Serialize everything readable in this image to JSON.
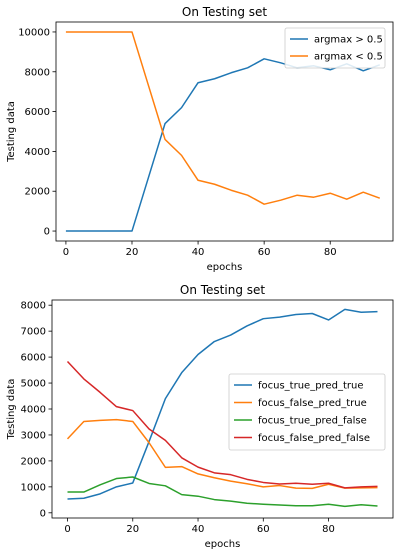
{
  "chart_data": [
    {
      "type": "line",
      "title": "On Testing set",
      "xlabel": "epochs",
      "ylabel": "Testing data",
      "xlim": [
        -3,
        99
      ],
      "ylim": [
        -500,
        10500
      ],
      "xticks": [
        0,
        20,
        40,
        60,
        80
      ],
      "yticks": [
        0,
        2000,
        4000,
        6000,
        8000,
        10000
      ],
      "grid": false,
      "legend_position": "upper right",
      "x": [
        0,
        5,
        10,
        15,
        20,
        25,
        30,
        35,
        40,
        45,
        50,
        55,
        60,
        65,
        70,
        75,
        80,
        85,
        90,
        95
      ],
      "series": [
        {
          "name": "argmax > 0.5",
          "color": "#1f77b4",
          "values": [
            0,
            0,
            0,
            0,
            0,
            2700,
            5400,
            6200,
            7450,
            7650,
            7950,
            8200,
            8650,
            8450,
            8200,
            8300,
            8100,
            8400,
            8050,
            8350
          ]
        },
        {
          "name": "argmax < 0.5",
          "color": "#ff7f0e",
          "values": [
            10000,
            10000,
            10000,
            10000,
            10000,
            7300,
            4600,
            3800,
            2550,
            2350,
            2050,
            1800,
            1350,
            1550,
            1800,
            1700,
            1900,
            1600,
            1950,
            1650
          ]
        }
      ]
    },
    {
      "type": "line",
      "title": "On Testing set",
      "xlabel": "epochs",
      "ylabel": "Testing data",
      "xlim": [
        -4.75,
        99.75
      ],
      "ylim": [
        -200,
        8200
      ],
      "xticks": [
        0,
        20,
        40,
        60,
        80
      ],
      "yticks": [
        0,
        1000,
        2000,
        3000,
        4000,
        5000,
        6000,
        7000,
        8000
      ],
      "grid": false,
      "legend_position": "center right",
      "x": [
        0,
        5,
        10,
        15,
        20,
        25,
        30,
        35,
        40,
        45,
        50,
        55,
        60,
        65,
        70,
        75,
        80,
        85,
        90,
        95
      ],
      "series": [
        {
          "name": "focus_true_pred_true",
          "color": "#1f77b4",
          "values": [
            530,
            560,
            730,
            1000,
            1150,
            2750,
            4400,
            5400,
            6100,
            6600,
            6850,
            7200,
            7480,
            7540,
            7640,
            7680,
            7430,
            7840,
            7730,
            7750
          ]
        },
        {
          "name": "focus_false_pred_true",
          "color": "#ff7f0e",
          "values": [
            2850,
            3520,
            3560,
            3590,
            3520,
            2700,
            1750,
            1780,
            1500,
            1350,
            1220,
            1120,
            1000,
            1050,
            950,
            940,
            1100,
            950,
            960,
            970
          ]
        },
        {
          "name": "focus_true_pred_false",
          "color": "#2ca02c",
          "values": [
            800,
            800,
            1080,
            1320,
            1380,
            1130,
            1040,
            700,
            640,
            510,
            450,
            370,
            330,
            300,
            270,
            270,
            330,
            250,
            310,
            260
          ]
        },
        {
          "name": "focus_false_pred_false",
          "color": "#d62728",
          "values": [
            5830,
            5160,
            4640,
            4090,
            3940,
            3230,
            2790,
            2120,
            1760,
            1540,
            1470,
            1290,
            1170,
            1110,
            1140,
            1100,
            1140,
            960,
            1000,
            1020
          ]
        }
      ]
    }
  ]
}
